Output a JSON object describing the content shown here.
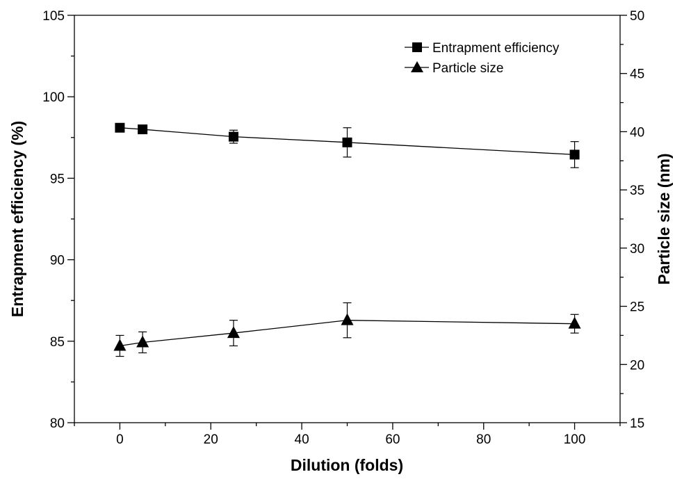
{
  "chart_data": {
    "type": "line",
    "xlabel": "Dilution (folds)",
    "ylabel_left": "Entrapment efficiency (%)",
    "ylabel_right": "Particle size (nm)",
    "xlim": [
      -10,
      110
    ],
    "ylim_left": [
      80,
      105
    ],
    "ylim_right": [
      15,
      50
    ],
    "x_ticks": [
      0,
      20,
      40,
      60,
      80,
      100
    ],
    "y_left_ticks": [
      80,
      85,
      90,
      95,
      100,
      105
    ],
    "y_right_ticks": [
      15,
      20,
      25,
      30,
      35,
      40,
      45,
      50
    ],
    "grid": false,
    "legend_position": "top-right",
    "series": [
      {
        "name": "Entrapment efficiency",
        "axis": "left",
        "marker": "square",
        "x": [
          0,
          5,
          25,
          50,
          100
        ],
        "y": [
          98.1,
          98.0,
          97.55,
          97.2,
          96.45
        ],
        "err": [
          0.15,
          0.25,
          0.4,
          0.9,
          0.8
        ]
      },
      {
        "name": "Particle size",
        "axis": "right",
        "marker": "triangle",
        "x": [
          0,
          5,
          25,
          50,
          100
        ],
        "y": [
          21.6,
          21.9,
          22.7,
          23.8,
          23.5
        ],
        "err": [
          0.9,
          0.9,
          1.1,
          1.5,
          0.8
        ]
      }
    ]
  }
}
